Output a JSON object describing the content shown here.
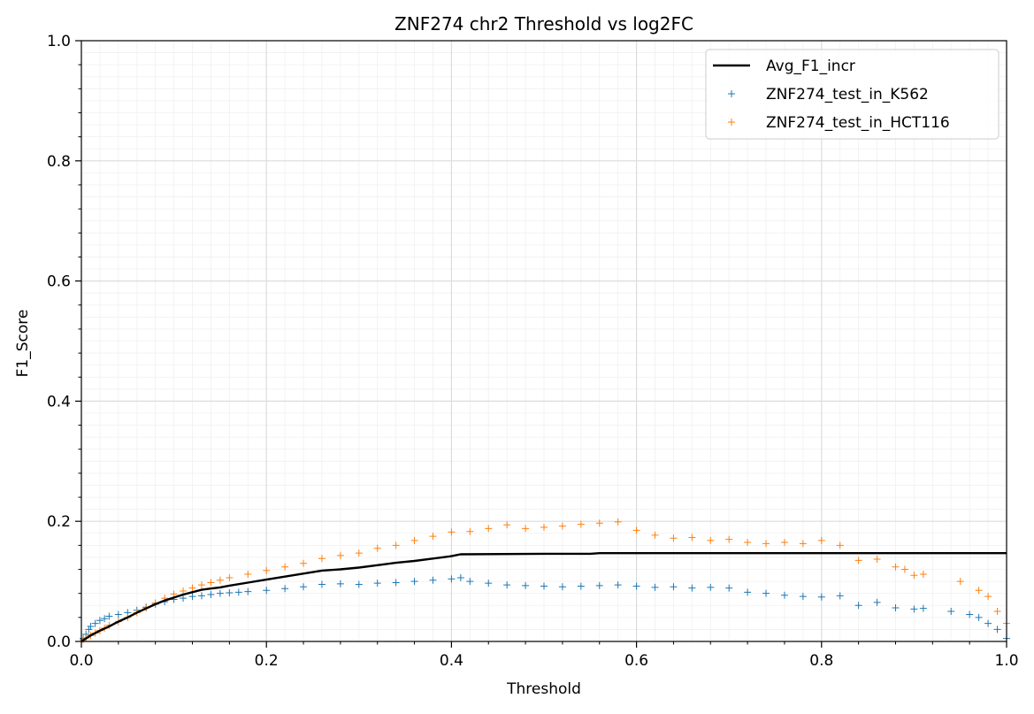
{
  "chart_data": {
    "type": "line",
    "title": "ZNF274 chr2 Threshold vs log2FC",
    "xlabel": "Threshold",
    "ylabel": "F1_Score",
    "xlim": [
      0.0,
      1.0
    ],
    "ylim": [
      0.0,
      1.0
    ],
    "xticks": [
      "0.0",
      "0.2",
      "0.4",
      "0.6",
      "0.8",
      "1.0"
    ],
    "yticks": [
      "0.0",
      "0.2",
      "0.4",
      "0.6",
      "0.8",
      "1.0"
    ],
    "grid": true,
    "minor_grid": true,
    "legend_position": "top-right",
    "series": [
      {
        "name": "Avg_F1_incr",
        "kind": "line",
        "color": "#000000",
        "points": [
          [
            0.0,
            0.0
          ],
          [
            0.005,
            0.005
          ],
          [
            0.01,
            0.01
          ],
          [
            0.02,
            0.018
          ],
          [
            0.03,
            0.025
          ],
          [
            0.04,
            0.033
          ],
          [
            0.05,
            0.04
          ],
          [
            0.06,
            0.048
          ],
          [
            0.07,
            0.055
          ],
          [
            0.08,
            0.062
          ],
          [
            0.09,
            0.068
          ],
          [
            0.1,
            0.073
          ],
          [
            0.11,
            0.078
          ],
          [
            0.12,
            0.082
          ],
          [
            0.13,
            0.086
          ],
          [
            0.14,
            0.088
          ],
          [
            0.15,
            0.09
          ],
          [
            0.16,
            0.093
          ],
          [
            0.18,
            0.098
          ],
          [
            0.2,
            0.103
          ],
          [
            0.22,
            0.108
          ],
          [
            0.24,
            0.113
          ],
          [
            0.26,
            0.118
          ],
          [
            0.28,
            0.12
          ],
          [
            0.3,
            0.123
          ],
          [
            0.32,
            0.127
          ],
          [
            0.34,
            0.131
          ],
          [
            0.36,
            0.134
          ],
          [
            0.38,
            0.138
          ],
          [
            0.4,
            0.142
          ],
          [
            0.41,
            0.145
          ],
          [
            0.5,
            0.146
          ],
          [
            0.55,
            0.146
          ],
          [
            0.56,
            0.147
          ],
          [
            0.6,
            0.147
          ],
          [
            0.8,
            0.147
          ],
          [
            1.0,
            0.147
          ]
        ]
      },
      {
        "name": "ZNF274_test_in_K562",
        "kind": "scatter",
        "marker": "+",
        "color": "#1f77b4",
        "points": [
          [
            0.002,
            0.005
          ],
          [
            0.005,
            0.012
          ],
          [
            0.008,
            0.02
          ],
          [
            0.01,
            0.025
          ],
          [
            0.015,
            0.03
          ],
          [
            0.02,
            0.035
          ],
          [
            0.025,
            0.038
          ],
          [
            0.03,
            0.042
          ],
          [
            0.04,
            0.045
          ],
          [
            0.05,
            0.048
          ],
          [
            0.06,
            0.052
          ],
          [
            0.07,
            0.057
          ],
          [
            0.08,
            0.062
          ],
          [
            0.09,
            0.066
          ],
          [
            0.1,
            0.07
          ],
          [
            0.11,
            0.072
          ],
          [
            0.12,
            0.075
          ],
          [
            0.13,
            0.076
          ],
          [
            0.14,
            0.078
          ],
          [
            0.15,
            0.08
          ],
          [
            0.16,
            0.081
          ],
          [
            0.17,
            0.082
          ],
          [
            0.18,
            0.083
          ],
          [
            0.2,
            0.085
          ],
          [
            0.22,
            0.088
          ],
          [
            0.24,
            0.091
          ],
          [
            0.26,
            0.095
          ],
          [
            0.28,
            0.096
          ],
          [
            0.3,
            0.095
          ],
          [
            0.32,
            0.097
          ],
          [
            0.34,
            0.098
          ],
          [
            0.36,
            0.1
          ],
          [
            0.38,
            0.102
          ],
          [
            0.4,
            0.104
          ],
          [
            0.41,
            0.106
          ],
          [
            0.42,
            0.1
          ],
          [
            0.44,
            0.097
          ],
          [
            0.46,
            0.094
          ],
          [
            0.48,
            0.093
          ],
          [
            0.5,
            0.092
          ],
          [
            0.52,
            0.091
          ],
          [
            0.54,
            0.092
          ],
          [
            0.56,
            0.093
          ],
          [
            0.58,
            0.094
          ],
          [
            0.6,
            0.092
          ],
          [
            0.62,
            0.09
          ],
          [
            0.64,
            0.091
          ],
          [
            0.66,
            0.089
          ],
          [
            0.68,
            0.09
          ],
          [
            0.7,
            0.089
          ],
          [
            0.72,
            0.082
          ],
          [
            0.74,
            0.08
          ],
          [
            0.76,
            0.077
          ],
          [
            0.78,
            0.075
          ],
          [
            0.8,
            0.074
          ],
          [
            0.82,
            0.076
          ],
          [
            0.84,
            0.06
          ],
          [
            0.86,
            0.065
          ],
          [
            0.88,
            0.056
          ],
          [
            0.9,
            0.054
          ],
          [
            0.91,
            0.055
          ],
          [
            0.94,
            0.05
          ],
          [
            0.96,
            0.045
          ],
          [
            0.97,
            0.04
          ],
          [
            0.98,
            0.03
          ],
          [
            0.99,
            0.02
          ],
          [
            1.0,
            0.005
          ]
        ]
      },
      {
        "name": "ZNF274_test_in_HCT116",
        "kind": "scatter",
        "marker": "+",
        "color": "#ff7f0e",
        "points": [
          [
            0.002,
            0.003
          ],
          [
            0.005,
            0.006
          ],
          [
            0.01,
            0.01
          ],
          [
            0.015,
            0.014
          ],
          [
            0.02,
            0.018
          ],
          [
            0.025,
            0.022
          ],
          [
            0.03,
            0.027
          ],
          [
            0.04,
            0.033
          ],
          [
            0.05,
            0.04
          ],
          [
            0.06,
            0.048
          ],
          [
            0.07,
            0.056
          ],
          [
            0.08,
            0.064
          ],
          [
            0.09,
            0.072
          ],
          [
            0.1,
            0.079
          ],
          [
            0.11,
            0.084
          ],
          [
            0.12,
            0.089
          ],
          [
            0.13,
            0.094
          ],
          [
            0.14,
            0.098
          ],
          [
            0.15,
            0.102
          ],
          [
            0.16,
            0.106
          ],
          [
            0.18,
            0.112
          ],
          [
            0.2,
            0.118
          ],
          [
            0.22,
            0.124
          ],
          [
            0.24,
            0.13
          ],
          [
            0.26,
            0.138
          ],
          [
            0.28,
            0.143
          ],
          [
            0.3,
            0.147
          ],
          [
            0.32,
            0.155
          ],
          [
            0.34,
            0.16
          ],
          [
            0.36,
            0.168
          ],
          [
            0.38,
            0.175
          ],
          [
            0.4,
            0.182
          ],
          [
            0.42,
            0.183
          ],
          [
            0.44,
            0.188
          ],
          [
            0.46,
            0.194
          ],
          [
            0.48,
            0.188
          ],
          [
            0.5,
            0.19
          ],
          [
            0.52,
            0.192
          ],
          [
            0.54,
            0.195
          ],
          [
            0.56,
            0.197
          ],
          [
            0.58,
            0.199
          ],
          [
            0.6,
            0.185
          ],
          [
            0.62,
            0.177
          ],
          [
            0.64,
            0.172
          ],
          [
            0.66,
            0.173
          ],
          [
            0.68,
            0.168
          ],
          [
            0.7,
            0.17
          ],
          [
            0.72,
            0.165
          ],
          [
            0.74,
            0.163
          ],
          [
            0.76,
            0.165
          ],
          [
            0.78,
            0.163
          ],
          [
            0.8,
            0.168
          ],
          [
            0.82,
            0.16
          ],
          [
            0.84,
            0.135
          ],
          [
            0.86,
            0.137
          ],
          [
            0.88,
            0.124
          ],
          [
            0.89,
            0.12
          ],
          [
            0.9,
            0.11
          ],
          [
            0.91,
            0.112
          ],
          [
            0.95,
            0.1
          ],
          [
            0.97,
            0.085
          ],
          [
            0.98,
            0.075
          ],
          [
            0.99,
            0.05
          ],
          [
            1.0,
            0.03
          ]
        ]
      }
    ]
  }
}
